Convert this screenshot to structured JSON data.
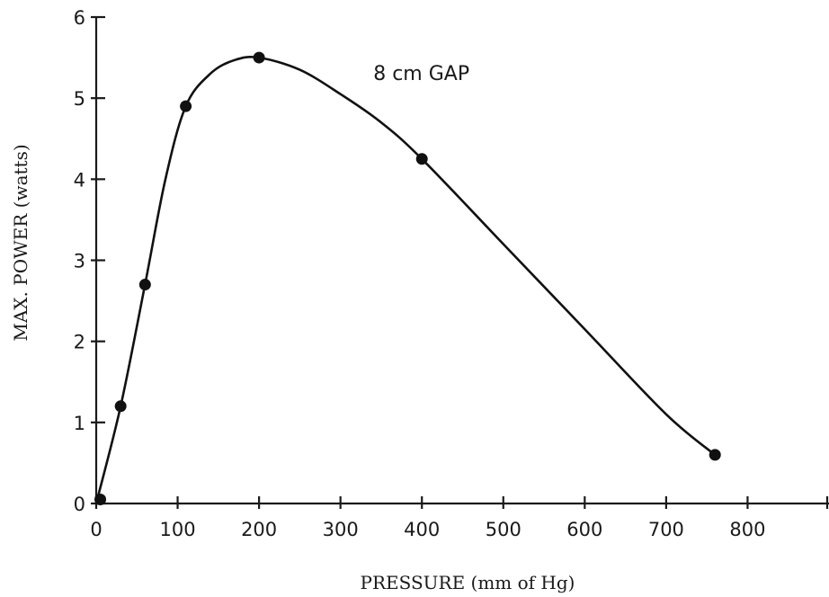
{
  "chart_data": {
    "type": "line",
    "title": "",
    "xlabel": "PRESSURE (mm of Hg)",
    "ylabel": "MAX. POWER (watts)",
    "xlim": [
      0,
      900
    ],
    "ylim": [
      0,
      6
    ],
    "x_ticks": [
      0,
      100,
      200,
      300,
      400,
      500,
      600,
      700,
      800
    ],
    "x_tick_labels": [
      "0",
      "100",
      "200",
      "300",
      "400",
      "500",
      "600",
      "700",
      "800"
    ],
    "y_ticks": [
      0,
      1,
      2,
      3,
      4,
      5,
      6
    ],
    "y_tick_labels": [
      "0",
      "1",
      "2",
      "3",
      "4",
      "5",
      "6"
    ],
    "grid": false,
    "annotations": [
      {
        "text": "8 cm GAP",
        "x": 400,
        "y": 5.2
      }
    ],
    "series": [
      {
        "points": [
          {
            "x": 5,
            "y": 0.05
          },
          {
            "x": 30,
            "y": 1.2
          },
          {
            "x": 60,
            "y": 2.7
          },
          {
            "x": 110,
            "y": 4.9
          },
          {
            "x": 200,
            "y": 5.5
          },
          {
            "x": 400,
            "y": 4.25
          },
          {
            "x": 760,
            "y": 0.6
          }
        ],
        "curve": [
          [
            0,
            0
          ],
          [
            30,
            1.2
          ],
          [
            60,
            2.7
          ],
          [
            85,
            4.0
          ],
          [
            110,
            4.9
          ],
          [
            140,
            5.3
          ],
          [
            170,
            5.47
          ],
          [
            200,
            5.5
          ],
          [
            250,
            5.35
          ],
          [
            300,
            5.05
          ],
          [
            350,
            4.7
          ],
          [
            400,
            4.25
          ],
          [
            500,
            3.2
          ],
          [
            600,
            2.15
          ],
          [
            700,
            1.1
          ],
          [
            760,
            0.6
          ]
        ],
        "color": "#111111"
      }
    ]
  }
}
